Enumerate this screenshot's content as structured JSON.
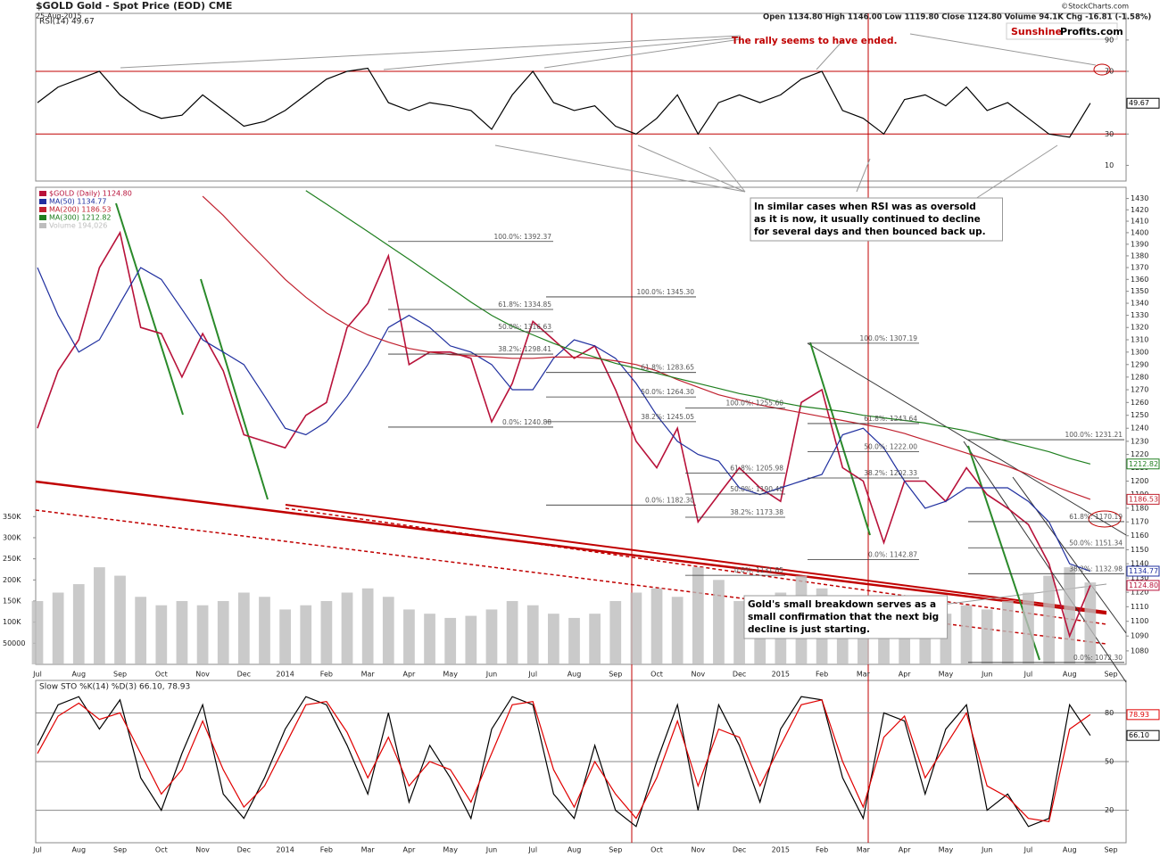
{
  "header": {
    "title": "$GOLD Gold - Spot Price (EOD) CME",
    "date": "25-Aug-2015",
    "info": "Open 1134.80 High 1146.00 Low 1119.80 Close 1124.80 Volume 94.1K Chg -16.81 (-1.58%)",
    "credit": "©StockCharts.com",
    "brand": [
      "Sunshine",
      "Profits.com"
    ]
  },
  "chart_data": [
    {
      "type": "line",
      "title": "RSI(14) 49.67",
      "categories": [
        "Jul",
        null,
        "Aug",
        null,
        "Sep",
        null,
        "Oct",
        null,
        "Nov",
        null,
        "Dec",
        null,
        "2014",
        null,
        "Feb",
        null,
        "Mar",
        null,
        "Apr",
        null,
        "May",
        null,
        "Jun",
        null,
        "Jul",
        null,
        "Aug",
        null,
        "Sep",
        null,
        "Oct",
        null,
        "Nov",
        null,
        "Dec",
        null,
        "2015",
        null,
        "Feb",
        null,
        "Mar",
        null,
        "Apr",
        null,
        "May",
        null,
        "Jun",
        null,
        "Jul",
        null,
        "Aug",
        null,
        "Sep"
      ],
      "series": [
        {
          "color": "#000000",
          "values": [
            50,
            60,
            65,
            70,
            55,
            45,
            40,
            42,
            55,
            45,
            35,
            38,
            45,
            55,
            65,
            70,
            72,
            50,
            45,
            50,
            48,
            45,
            33,
            55,
            70,
            50,
            45,
            48,
            35,
            30,
            40,
            55,
            30,
            50,
            55,
            50,
            55,
            65,
            70,
            45,
            40,
            30,
            52,
            55,
            48,
            60,
            45,
            50,
            40,
            30,
            28,
            49.67,
            null
          ]
        }
      ],
      "ylim": [
        0,
        107
      ],
      "yticks": [
        10,
        30,
        70,
        90
      ],
      "reference_lines": [
        70,
        30
      ],
      "reference_color": "#c00000",
      "annotations": [
        {
          "lines": [
            "The rally seems to have ended."
          ],
          "color": "#c00000"
        }
      ]
    },
    {
      "type": "line",
      "log": true,
      "categories": [
        "Jul",
        null,
        "Aug",
        null,
        "Sep",
        null,
        "Oct",
        null,
        "Nov",
        null,
        "Dec",
        null,
        "2014",
        null,
        "Feb",
        null,
        "Mar",
        null,
        "Apr",
        null,
        "May",
        null,
        "Jun",
        null,
        "Jul",
        null,
        "Aug",
        null,
        "Sep",
        null,
        "Oct",
        null,
        "Nov",
        null,
        "Dec",
        null,
        "2015",
        null,
        "Feb",
        null,
        "Mar",
        null,
        "Apr",
        null,
        "May",
        null,
        "Jun",
        null,
        "Jul",
        null,
        "Aug",
        null,
        "Sep"
      ],
      "series": [
        {
          "name": "$GOLD (Daily) 1124.80",
          "color": "#b8123a",
          "values": [
            1240,
            1285,
            1310,
            1370,
            1400,
            1320,
            1315,
            1280,
            1315,
            1285,
            1235,
            1230,
            1225,
            1250,
            1260,
            1320,
            1340,
            1380,
            1290,
            1300,
            1300,
            1295,
            1245,
            1275,
            1325,
            1310,
            1295,
            1305,
            1270,
            1230,
            1210,
            1240,
            1170,
            1190,
            1210,
            1195,
            1185,
            1260,
            1270,
            1210,
            1200,
            1155,
            1200,
            1200,
            1185,
            1210,
            1190,
            1180,
            1168,
            1140,
            1090,
            1124.8,
            null
          ],
          "value_labels": [
            null,
            null,
            null,
            null,
            null,
            null,
            null,
            null,
            null,
            null,
            null,
            null,
            null,
            null,
            null,
            null,
            null,
            null,
            null,
            null,
            null,
            null,
            null,
            null,
            null,
            null,
            null,
            null,
            null,
            null,
            null,
            null,
            null,
            null,
            null,
            null,
            null,
            null,
            null,
            null,
            null,
            null,
            null,
            null,
            null,
            null,
            null,
            null,
            null,
            null,
            null,
            "1124.80",
            null
          ]
        },
        {
          "name": "MA(50) 1134.77",
          "color": "#1f2f9f",
          "values": [
            1370,
            1330,
            1300,
            1310,
            1340,
            1370,
            1360,
            1335,
            1310,
            1300,
            1290,
            1265,
            1240,
            1235,
            1245,
            1265,
            1290,
            1320,
            1330,
            1320,
            1305,
            1300,
            1290,
            1270,
            1270,
            1295,
            1310,
            1305,
            1295,
            1275,
            1250,
            1230,
            1220,
            1215,
            1195,
            1190,
            1195,
            1200,
            1205,
            1235,
            1240,
            1225,
            1200,
            1180,
            1185,
            1195,
            1195,
            1195,
            1185,
            1170,
            1140,
            1134.77,
            null
          ]
        },
        {
          "name": "MA(200) 1186.53",
          "color": "#c0202e",
          "values": [
            null,
            null,
            null,
            null,
            null,
            null,
            null,
            null,
            1432,
            1415,
            1396,
            1378,
            1360,
            1345,
            1332,
            1322,
            1314,
            1308,
            1303,
            1300,
            1298,
            1297,
            1296,
            1295,
            1295,
            1296,
            1296,
            1295,
            1293,
            1290,
            1285,
            1278,
            1272,
            1266,
            1262,
            1258,
            1255,
            1252,
            1249,
            1246,
            1243,
            1240,
            1236,
            1231,
            1226,
            1221,
            1216,
            1211,
            1205,
            1198,
            1192,
            1186.53,
            null
          ]
        },
        {
          "name": "MA(300) 1212.82",
          "color": "#1f7f1f",
          "values": [
            null,
            null,
            null,
            null,
            null,
            null,
            null,
            null,
            null,
            null,
            null,
            null,
            null,
            1437,
            1425,
            1413,
            1401,
            1389,
            1377,
            1365,
            1353,
            1341,
            1330,
            1321,
            1314,
            1307,
            1301,
            1296,
            1291,
            1287,
            1283,
            1279,
            1275,
            1271,
            1267,
            1264,
            1260,
            1257,
            1255,
            1253,
            1250,
            1248,
            1246,
            1244,
            1241,
            1238,
            1234,
            1230,
            1226,
            1222,
            1217,
            1212.82,
            null
          ]
        },
        {
          "name": "Volume 194,026",
          "type": "bar",
          "axis": "y2",
          "color": "#bdbdbd",
          "values": [
            150000,
            170000,
            190000,
            230000,
            210000,
            160000,
            140000,
            150000,
            140000,
            150000,
            170000,
            160000,
            130000,
            140000,
            150000,
            170000,
            180000,
            160000,
            130000,
            120000,
            110000,
            115000,
            130000,
            150000,
            140000,
            120000,
            110000,
            120000,
            150000,
            170000,
            180000,
            160000,
            230000,
            200000,
            150000,
            130000,
            170000,
            210000,
            180000,
            150000,
            140000,
            150000,
            140000,
            130000,
            120000,
            140000,
            130000,
            150000,
            170000,
            210000,
            230000,
            194026,
            null
          ]
        }
      ],
      "ylim": [
        1071,
        1440
      ],
      "yticks": [
        1080,
        1090,
        1100,
        1110,
        1120,
        1130,
        1140,
        1150,
        1160,
        1170,
        1180,
        1190,
        1200,
        1210,
        1220,
        1230,
        1240,
        1250,
        1260,
        1270,
        1280,
        1290,
        1300,
        1310,
        1320,
        1330,
        1340,
        1350,
        1360,
        1370,
        1380,
        1390,
        1400,
        1410,
        1420,
        1430
      ],
      "y2lim": [
        0,
        1130000
      ],
      "y2ticks": [
        50000,
        {
          "value": 100000,
          "label": "100K"
        },
        {
          "value": 150000,
          "label": "150K"
        },
        {
          "value": 200000,
          "label": "200K"
        },
        {
          "value": 250000,
          "label": "250K"
        },
        {
          "value": 300000,
          "label": "300K"
        },
        {
          "value": 350000,
          "label": "350K"
        }
      ],
      "fib_groups": [
        [
          {
            "value": 1392.37,
            "label": "100.0%: 1392.37"
          },
          {
            "value": 1334.85,
            "label": "61.8%: 1334.85"
          },
          {
            "value": 1316.63,
            "label": "50.0%: 1316.63"
          },
          {
            "value": 1298.41,
            "label": "38.2%: 1298.41"
          },
          {
            "value": 1240.88,
            "label": "0.0%: 1240.88"
          }
        ],
        [
          {
            "value": 1345.3,
            "label": "100.0%: 1345.30"
          },
          {
            "value": 1283.65,
            "label": "61.8%: 1283.65"
          },
          {
            "value": 1264.3,
            "label": "50.0%: 1264.30"
          },
          {
            "value": 1245.05,
            "label": "38.2%: 1245.05"
          },
          {
            "value": 1182.3,
            "label": "0.0%: 1182.30"
          }
        ],
        [
          {
            "value": 1255.6,
            "label": "100.0%: 1255.60"
          },
          {
            "value": 1205.98,
            "label": "61.8%: 1205.98"
          },
          {
            "value": 1190.4,
            "label": "50.0%: 1190.40"
          },
          {
            "value": 1173.38,
            "label": "38.2%: 1173.38"
          },
          {
            "value": 1131.85,
            "label": "0.0%: 1131.85"
          }
        ],
        [
          {
            "value": 1307.19,
            "label": "100.0%: 1307.19"
          },
          {
            "value": 1243.64,
            "label": "61.8%: 1243.64"
          },
          {
            "value": 1222.0,
            "label": "50.0%: 1222.00"
          },
          {
            "value": 1202.33,
            "label": "38.2%: 1202.33"
          },
          {
            "value": 1142.87,
            "label": "0.0%: 1142.87"
          }
        ],
        [
          {
            "value": 1231.21,
            "label": "100.0%: 1231.21"
          },
          {
            "value": 1170.19,
            "label": "61.8%: 1170.19"
          },
          {
            "value": 1151.34,
            "label": "50.0%: 1151.34"
          },
          {
            "value": 1132.98,
            "label": "38.2%: 1132.98"
          },
          {
            "value": 1072.3,
            "label": "0.0%: 1072.30"
          }
        ]
      ],
      "annotations": [
        {
          "lines": [
            "In similar cases when RSI was as oversold",
            "as it is now, it usually continued to decline",
            "for several days and then bounced back up."
          ],
          "color": "#000000"
        },
        {
          "lines": [
            "Gold's small breakdown serves as a",
            "small confirmation that the next big",
            "decline is just starting."
          ],
          "color": "#000000"
        }
      ]
    },
    {
      "type": "line",
      "title": "Slow STO %K(14) %D(3) 66.10, 78.93",
      "categories": [
        "Jul",
        null,
        "Aug",
        null,
        "Sep",
        null,
        "Oct",
        null,
        "Nov",
        null,
        "Dec",
        null,
        "2014",
        null,
        "Feb",
        null,
        "Mar",
        null,
        "Apr",
        null,
        "May",
        null,
        "Jun",
        null,
        "Jul",
        null,
        "Aug",
        null,
        "Sep",
        null,
        "Oct",
        null,
        "Nov",
        null,
        "Dec",
        null,
        "2015",
        null,
        "Feb",
        null,
        "Mar",
        null,
        "Apr",
        null,
        "May",
        null,
        "Jun",
        null,
        "Jul",
        null,
        "Aug",
        null,
        "Sep"
      ],
      "series": [
        {
          "color": "#000000",
          "values": [
            60,
            85,
            90,
            70,
            88,
            40,
            20,
            55,
            85,
            30,
            15,
            40,
            70,
            90,
            85,
            60,
            30,
            80,
            25,
            60,
            40,
            15,
            70,
            90,
            85,
            30,
            15,
            60,
            20,
            10,
            50,
            85,
            20,
            85,
            60,
            25,
            70,
            90,
            88,
            40,
            15,
            80,
            75,
            30,
            70,
            85,
            20,
            30,
            10,
            15,
            85,
            66.1,
            null
          ],
          "value_labels": [
            null,
            null,
            null,
            null,
            null,
            null,
            null,
            null,
            null,
            null,
            null,
            null,
            null,
            null,
            null,
            null,
            null,
            null,
            null,
            null,
            null,
            null,
            null,
            null,
            null,
            null,
            null,
            null,
            null,
            null,
            null,
            null,
            null,
            null,
            null,
            null,
            null,
            null,
            null,
            null,
            null,
            null,
            null,
            null,
            null,
            null,
            null,
            null,
            null,
            null,
            null,
            "66.10",
            null
          ]
        },
        {
          "color": "#e00000",
          "values": [
            55,
            78,
            86,
            76,
            80,
            55,
            30,
            45,
            75,
            45,
            22,
            35,
            60,
            85,
            87,
            68,
            40,
            65,
            35,
            50,
            45,
            25,
            55,
            85,
            87,
            45,
            22,
            50,
            30,
            15,
            40,
            75,
            35,
            70,
            65,
            35,
            60,
            85,
            88,
            50,
            22,
            65,
            78,
            40,
            60,
            80,
            35,
            28,
            15,
            13,
            70,
            78.93,
            null
          ]
        }
      ],
      "ylim": [
        0,
        100
      ],
      "yticks": [
        20,
        50,
        80
      ],
      "reference_lines": [
        80,
        50,
        20
      ],
      "reference_color": "#888888"
    }
  ]
}
